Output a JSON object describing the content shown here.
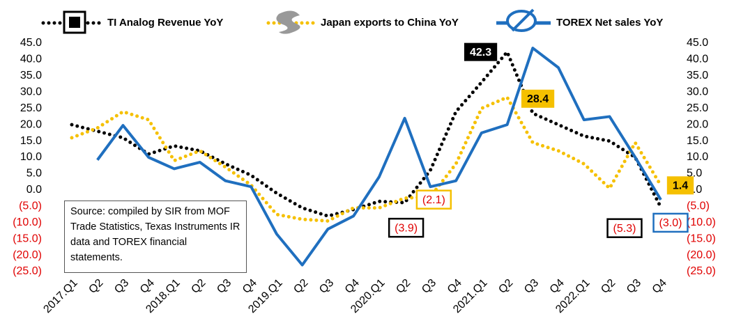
{
  "chart_data": {
    "type": "line",
    "categories": [
      "2017.Q1",
      "Q2",
      "Q3",
      "Q4",
      "2018.Q1",
      "Q2",
      "Q3",
      "Q4",
      "2019.Q1",
      "Q2",
      "Q3",
      "Q4",
      "2020.Q1",
      "Q2",
      "Q3",
      "Q4",
      "2021.Q1",
      "Q2",
      "Q3",
      "Q4",
      "2022.Q1",
      "Q2",
      "Q3",
      "Q4"
    ],
    "series": [
      {
        "name": "TI Analog Revenue YoY",
        "color": "#000000",
        "style": "dotted",
        "values": [
          20,
          18,
          16,
          11,
          13.5,
          12,
          8,
          4.5,
          -1,
          -5.5,
          -8,
          -6,
          -3.5,
          -3.9,
          6,
          24,
          33,
          42.3,
          23.5,
          20,
          16.5,
          15,
          10,
          -5.3
        ],
        "value_labels": [
          null,
          null,
          null,
          null,
          null,
          null,
          null,
          null,
          null,
          null,
          null,
          null,
          null,
          "(3.9)",
          null,
          null,
          null,
          "42.3",
          null,
          null,
          null,
          null,
          null,
          "(5.3)"
        ]
      },
      {
        "name": "Japan exports to China YoY",
        "color": "#f5c000",
        "style": "dotted",
        "values": [
          16,
          19,
          24,
          21.5,
          9,
          12,
          7,
          1.5,
          -7.5,
          -9,
          -9.5,
          -5.5,
          -5.5,
          -2.5,
          -2.1,
          8,
          25,
          28.4,
          14.5,
          12,
          8,
          0.5,
          14.5,
          1.4
        ],
        "value_labels": [
          null,
          null,
          null,
          null,
          null,
          null,
          null,
          null,
          null,
          null,
          null,
          null,
          null,
          null,
          "(2.1)",
          null,
          null,
          "28.4",
          null,
          null,
          null,
          null,
          null,
          "1.4"
        ]
      },
      {
        "name": "TOREX Net sales YoY",
        "color": "#1f6fbf",
        "style": "solid",
        "values": [
          null,
          9.2,
          19.8,
          10,
          6.5,
          8.5,
          2.8,
          1,
          -13.5,
          -23,
          -12,
          -8,
          4,
          22,
          1,
          2.8,
          17.5,
          20,
          43.5,
          37.5,
          21.5,
          22.5,
          10,
          -3.0
        ],
        "value_labels": [
          null,
          null,
          null,
          null,
          null,
          null,
          null,
          null,
          null,
          null,
          null,
          null,
          null,
          null,
          null,
          null,
          null,
          null,
          null,
          null,
          null,
          null,
          null,
          "(3.0)"
        ]
      }
    ],
    "ylim": [
      -25,
      45
    ],
    "yticks": [
      {
        "value": -25,
        "label": "(25.0)"
      },
      {
        "value": -20,
        "label": "(20.0)"
      },
      {
        "value": -15,
        "label": "(15.0)"
      },
      {
        "value": -10,
        "label": "(10.0)"
      },
      {
        "value": -5,
        "label": "(5.0)"
      },
      {
        "value": 0,
        "label": "0.0"
      },
      {
        "value": 5,
        "label": "5.0"
      },
      {
        "value": 10,
        "label": "10.0"
      },
      {
        "value": 15,
        "label": "15.0"
      },
      {
        "value": 20,
        "label": "20.0"
      },
      {
        "value": 25,
        "label": "25.0"
      },
      {
        "value": 30,
        "label": "30.0"
      },
      {
        "value": 35,
        "label": "35.0"
      },
      {
        "value": 40,
        "label": "40.0"
      },
      {
        "value": 45,
        "label": "45.0"
      }
    ],
    "y2lim": [
      -25,
      45
    ],
    "y2ticks": [
      {
        "value": -25,
        "label": "(25.0)"
      },
      {
        "value": -20,
        "label": "(20.0)"
      },
      {
        "value": -15,
        "label": "(15.0)"
      },
      {
        "value": -10,
        "label": "(10.0)"
      },
      {
        "value": -5,
        "label": "(5.0)"
      },
      {
        "value": 0,
        "label": "0.0"
      },
      {
        "value": 5,
        "label": "5.0"
      },
      {
        "value": 10,
        "label": "10.0"
      },
      {
        "value": 15,
        "label": "15.0"
      },
      {
        "value": 20,
        "label": "20.0"
      },
      {
        "value": 25,
        "label": "25.0"
      },
      {
        "value": 30,
        "label": "30.0"
      },
      {
        "value": 35,
        "label": "35.0"
      },
      {
        "value": 40,
        "label": "40.0"
      },
      {
        "value": 45,
        "label": "45.0"
      }
    ],
    "annotation": "Source: compiled by SIR from MOF Trade Statistics, Texas Instruments IR data and TOREX financial statements.",
    "legend_position": "top",
    "grid": false
  }
}
